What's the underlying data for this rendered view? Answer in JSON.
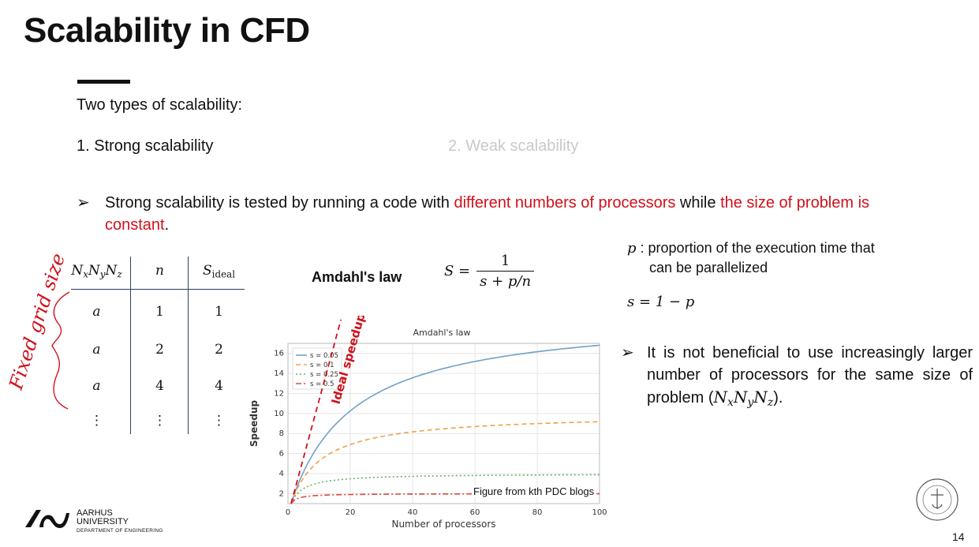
{
  "slide": {
    "title": "Scalability in CFD",
    "lead": "Two types of scalability:",
    "type_strong": "1. Strong scalability",
    "type_weak": "2. Weak scalability",
    "bullet1": {
      "arrow": "➢",
      "part1": "Strong scalability is tested by running a code with ",
      "red1": "different numbers of processors",
      "part2": " while ",
      "red2": "the size of problem is constant",
      "part3": "."
    },
    "table": {
      "headers": [
        "N",
        "n",
        "S"
      ],
      "header_subs": [
        "x",
        "y",
        "z",
        "ideal"
      ],
      "rows": [
        [
          "a",
          "1",
          "1"
        ],
        [
          "a",
          "2",
          "2"
        ],
        [
          "a",
          "4",
          "4"
        ],
        [
          "⋮",
          "⋮",
          "⋮"
        ]
      ]
    },
    "amdahl_label": "Amdahl's law",
    "formula": {
      "lhs": "S =",
      "numerator": "1",
      "denominator": "s + p/n"
    },
    "p_note": {
      "symbol": "p",
      "line1": " : proportion of the execution time that",
      "line2": "can be parallelized"
    },
    "s_eq": "s = 1 − p",
    "bullet2": {
      "arrow": "➢",
      "text": "It is not beneficial to use increasingly larger number of processors for the same size of problem (",
      "math": "N",
      "close": ")."
    },
    "handwriting": "Fixed grid size",
    "figure_credit": "Figure from kth PDC blogs",
    "university": {
      "line1": "AARHUS",
      "line2": "UNIVERSITY",
      "line3": "DEPARTMENT OF ENGINEERING"
    },
    "page_number": "14"
  },
  "colors": {
    "accent_red": "#d0111b",
    "table_lines": "#2d3f63",
    "handwriting": "#d0111b"
  },
  "chart_data": {
    "type": "line",
    "title": "Amdahl's law",
    "xlabel": "Number of processors",
    "ylabel": "Speedup",
    "xlim": [
      0,
      100
    ],
    "ylim": [
      1,
      17
    ],
    "xticks": [
      0,
      20,
      40,
      60,
      80,
      100
    ],
    "yticks": [
      2,
      4,
      6,
      8,
      10,
      12,
      14,
      16
    ],
    "grid": true,
    "legend_position": "top-left",
    "series": [
      {
        "name": "s = 0.05",
        "s": 0.05,
        "color": "#6fa1c9",
        "dash": "solid"
      },
      {
        "name": "s = 0.1",
        "s": 0.1,
        "color": "#f0a04b",
        "dash": "dashed"
      },
      {
        "name": "s = 0.25",
        "s": 0.25,
        "color": "#5fb55f",
        "dash": "dotted"
      },
      {
        "name": "s = 0.5",
        "s": 0.5,
        "color": "#d84a3c",
        "dash": "dashdot"
      }
    ],
    "ideal_line_label": "Ideal speedup",
    "ideal_line_color": "#d0111b"
  }
}
